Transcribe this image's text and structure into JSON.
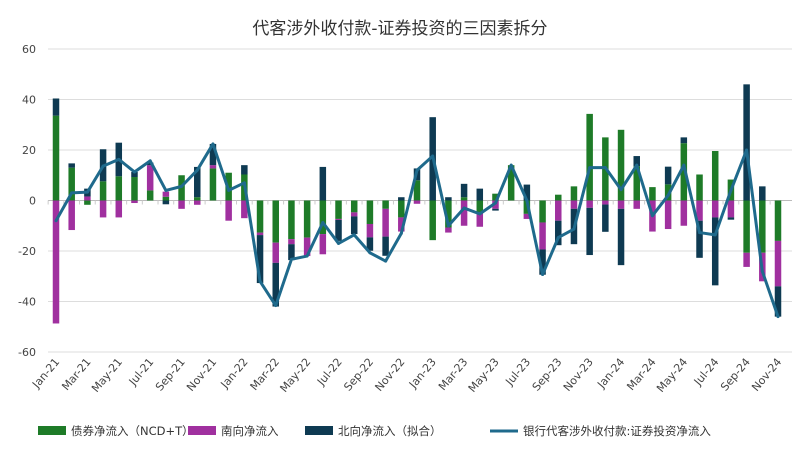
{
  "chart_data": {
    "type": "bar+line",
    "title": "代客涉外收付款-证券投资的三因素拆分",
    "xlabel": "",
    "ylabel": "",
    "ylim": [
      -60,
      60
    ],
    "yticks": [
      60,
      40,
      20,
      0,
      -20,
      -40,
      -60
    ],
    "grid": true,
    "legend": "bottom",
    "categories": [
      "Jan-21",
      "Feb-21",
      "Mar-21",
      "Apr-21",
      "May-21",
      "Jun-21",
      "Jul-21",
      "Aug-21",
      "Sep-21",
      "Oct-21",
      "Nov-21",
      "Dec-21",
      "Jan-22",
      "Feb-22",
      "Mar-22",
      "Apr-22",
      "May-22",
      "Jun-22",
      "Jul-22",
      "Aug-22",
      "Sep-22",
      "Oct-22",
      "Nov-22",
      "Dec-22",
      "Jan-23",
      "Feb-23",
      "Mar-23",
      "Apr-23",
      "May-23",
      "Jun-23",
      "Jul-23",
      "Aug-23",
      "Sep-23",
      "Oct-23",
      "Nov-23",
      "Dec-23",
      "Jan-24",
      "Feb-24",
      "Mar-24",
      "Apr-24",
      "May-24",
      "Jun-24",
      "Jul-24",
      "Aug-24",
      "Sep-24",
      "Oct-24",
      "Nov-24"
    ],
    "tick_labels": [
      "Jan-21",
      "Mar-21",
      "May-21",
      "Jul-21",
      "Sep-21",
      "Nov-21",
      "Jan-22",
      "Mar-22",
      "May-22",
      "Jul-22",
      "Sep-22",
      "Nov-22",
      "Jan-23",
      "Mar-23",
      "May-23",
      "Jul-23",
      "Sep-23",
      "Nov-23",
      "Jan-24",
      "Mar-24",
      "May-24",
      "Jul-24",
      "Sep-24",
      "Nov-24"
    ],
    "series": [
      {
        "name": "债券净流入（NCD+T）",
        "kind": "bar",
        "color": "#1e7b28",
        "values": [
          33.6,
          13,
          -1.7,
          7.6,
          9.6,
          9.3,
          4,
          1.5,
          10,
          1.3,
          12.7,
          11,
          10.3,
          -12.7,
          -16.7,
          -15.3,
          -14.7,
          -13.3,
          -7.3,
          -4.7,
          -9.3,
          -3.3,
          -6.7,
          8,
          -15.7,
          -10.7,
          1.3,
          -4.7,
          2.7,
          14,
          -5.3,
          -8.7,
          2.3,
          5.6,
          34.3,
          25,
          28,
          13.6,
          5.3,
          6.4,
          22.7,
          10.3,
          19.6,
          8.3,
          -20.7,
          -20.7,
          -16
        ]
      },
      {
        "name": "南向净流入",
        "kind": "bar",
        "color": "#a0309f",
        "values": [
          -48.7,
          -11.7,
          1.6,
          -6.7,
          -6.7,
          -1,
          10,
          2,
          -3.3,
          -1.7,
          1.3,
          -8,
          -7,
          -1,
          -8,
          -2,
          -7.3,
          -8,
          -0.4,
          -1.6,
          -5.3,
          -11,
          -5.6,
          -1.3,
          0,
          -2,
          -10,
          -5.7,
          -3.3,
          0,
          -2,
          -10.7,
          -8,
          -3.3,
          -2.9,
          -1.6,
          -3.3,
          -3.3,
          -12.3,
          -11.3,
          -10,
          -8,
          -6.7,
          -6.7,
          -5.6,
          -11.3,
          -18
        ]
      },
      {
        "name": "北向净流入（拟合）",
        "kind": "bar",
        "color": "#0e3a52",
        "values": [
          6.8,
          1.7,
          3.1,
          12.7,
          13.3,
          2,
          1,
          -1.5,
          0,
          12,
          8.4,
          0,
          3.7,
          -19,
          -17.3,
          -6.3,
          0,
          13.3,
          -8.3,
          -7,
          -5.3,
          -7.6,
          1.3,
          4.7,
          33,
          1.3,
          5.3,
          4.7,
          -0.7,
          0,
          6.3,
          -10,
          -9.7,
          -14,
          -18.7,
          -10.8,
          -22.3,
          4,
          0,
          7,
          2.3,
          -14.7,
          -26.9,
          -0.9,
          46,
          5.6,
          -12
        ]
      },
      {
        "name": "银行代客涉外收付款:证券投资净流入",
        "kind": "line",
        "color": "#1f6a8c",
        "values": [
          -8,
          3,
          3.3,
          13.6,
          16.3,
          11.3,
          15.7,
          4,
          5.6,
          12,
          22.4,
          4,
          7,
          -32,
          -41.6,
          -23.3,
          -22,
          -8.7,
          -17,
          -13.6,
          -20.7,
          -24,
          -13,
          12,
          17.6,
          -10,
          -3,
          -5.3,
          -1,
          14,
          0,
          -29.3,
          -14.7,
          -11.3,
          13,
          13,
          4.3,
          14,
          -6,
          2,
          14,
          -12.7,
          -13.6,
          4,
          20,
          -28,
          -46
        ]
      }
    ]
  }
}
